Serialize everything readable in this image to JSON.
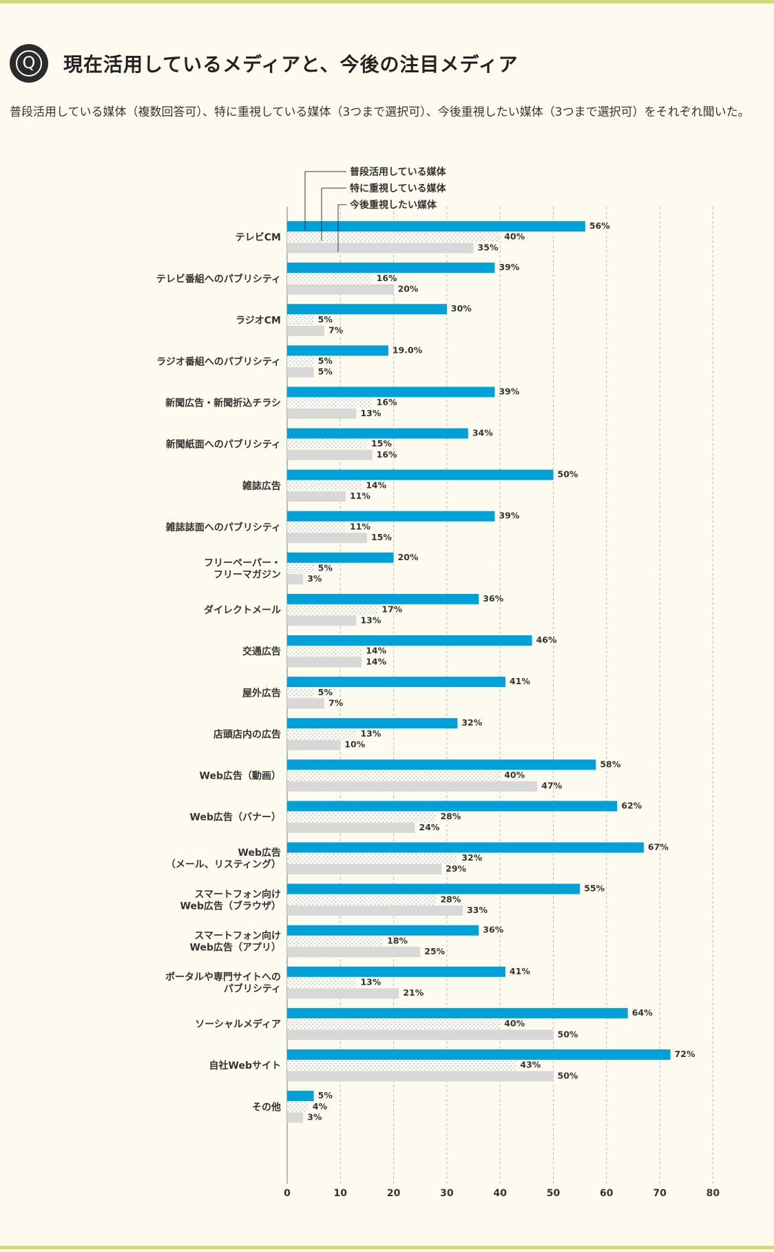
{
  "header": {
    "badge": "Q",
    "title": "現在活用しているメディアと、今後の注目メディア",
    "subtitle": "普段活用している媒体（複数回答可）、特に重視している媒体（3つまで選択可）、今後重視したい媒体（3つまで選択可）をそれぞれ聞いた。"
  },
  "colors": {
    "accent": "#00a0d8",
    "dotted": "#b9cde6",
    "gray": "#d8d8d8",
    "rule": "#c9dc7b"
  },
  "chart_data": {
    "type": "bar",
    "orientation": "horizontal",
    "xlim": [
      0,
      80
    ],
    "xticks": [
      "0",
      "10",
      "20",
      "30",
      "40",
      "50",
      "60",
      "70",
      "80"
    ],
    "grid": true,
    "legend_placement": "top, with leader lines to first group",
    "series": [
      {
        "name": "普段活用している媒体",
        "style": "solid blue"
      },
      {
        "name": "特に重視している媒体",
        "style": "dotted"
      },
      {
        "name": "今後重視したい媒体",
        "style": "light gray"
      }
    ],
    "categories": [
      {
        "label": [
          "テレビCM"
        ],
        "values": [
          56,
          40,
          35
        ],
        "labels": [
          "56%",
          "40%",
          "35%"
        ]
      },
      {
        "label": [
          "テレビ番組へのパブリシティ"
        ],
        "values": [
          39,
          16,
          20
        ],
        "labels": [
          "39%",
          "16%",
          "20%"
        ]
      },
      {
        "label": [
          "ラジオCM"
        ],
        "values": [
          30,
          5,
          7
        ],
        "labels": [
          "30%",
          "5%",
          "7%"
        ]
      },
      {
        "label": [
          "ラジオ番組へのパブリシティ"
        ],
        "values": [
          19.0,
          5,
          5
        ],
        "labels": [
          "19.0%",
          "5%",
          "5%"
        ]
      },
      {
        "label": [
          "新聞広告・新聞折込チラシ"
        ],
        "values": [
          39,
          16,
          13
        ],
        "labels": [
          "39%",
          "16%",
          "13%"
        ]
      },
      {
        "label": [
          "新聞紙面へのパブリシティ"
        ],
        "values": [
          34,
          15,
          16
        ],
        "labels": [
          "34%",
          "15%",
          "16%"
        ]
      },
      {
        "label": [
          "雑誌広告"
        ],
        "values": [
          50,
          14,
          11
        ],
        "labels": [
          "50%",
          "14%",
          "11%"
        ]
      },
      {
        "label": [
          "雑誌誌面へのパブリシティ"
        ],
        "values": [
          39,
          11,
          15
        ],
        "labels": [
          "39%",
          "11%",
          "15%"
        ]
      },
      {
        "label": [
          "フリーペーパー・",
          "フリーマガジン"
        ],
        "values": [
          20,
          5,
          3
        ],
        "labels": [
          "20%",
          "5%",
          "3%"
        ]
      },
      {
        "label": [
          "ダイレクトメール"
        ],
        "values": [
          36,
          17,
          13
        ],
        "labels": [
          "36%",
          "17%",
          "13%"
        ]
      },
      {
        "label": [
          "交通広告"
        ],
        "values": [
          46,
          14,
          14
        ],
        "labels": [
          "46%",
          "14%",
          "14%"
        ]
      },
      {
        "label": [
          "屋外広告"
        ],
        "values": [
          41,
          5,
          7
        ],
        "labels": [
          "41%",
          "5%",
          "7%"
        ]
      },
      {
        "label": [
          "店頭店内の広告"
        ],
        "values": [
          32,
          13,
          10
        ],
        "labels": [
          "32%",
          "13%",
          "10%"
        ]
      },
      {
        "label": [
          "Web広告（動画）"
        ],
        "values": [
          58,
          40,
          47
        ],
        "labels": [
          "58%",
          "40%",
          "47%"
        ]
      },
      {
        "label": [
          "Web広告（バナー）"
        ],
        "values": [
          62,
          28,
          24
        ],
        "labels": [
          "62%",
          "28%",
          "24%"
        ]
      },
      {
        "label": [
          "Web広告",
          "（メール、リスティング）"
        ],
        "values": [
          67,
          32,
          29
        ],
        "labels": [
          "67%",
          "32%",
          "29%"
        ]
      },
      {
        "label": [
          "スマートフォン向け",
          "Web広告（ブラウザ）"
        ],
        "values": [
          55,
          28,
          33
        ],
        "labels": [
          "55%",
          "28%",
          "33%"
        ]
      },
      {
        "label": [
          "スマートフォン向け",
          "Web広告（アプリ）"
        ],
        "values": [
          36,
          18,
          25
        ],
        "labels": [
          "36%",
          "18%",
          "25%"
        ]
      },
      {
        "label": [
          "ポータルや専門サイトへの",
          "パブリシティ"
        ],
        "values": [
          41,
          13,
          21
        ],
        "labels": [
          "41%",
          "13%",
          "21%"
        ]
      },
      {
        "label": [
          "ソーシャルメディア"
        ],
        "values": [
          64,
          40,
          50
        ],
        "labels": [
          "64%",
          "40%",
          "50%"
        ]
      },
      {
        "label": [
          "自社Webサイト"
        ],
        "values": [
          72,
          43,
          50
        ],
        "labels": [
          "72%",
          "43%",
          "50%"
        ]
      },
      {
        "label": [
          "その他"
        ],
        "values": [
          5,
          4,
          3
        ],
        "labels": [
          "5%",
          "4%",
          "3%"
        ]
      }
    ]
  }
}
